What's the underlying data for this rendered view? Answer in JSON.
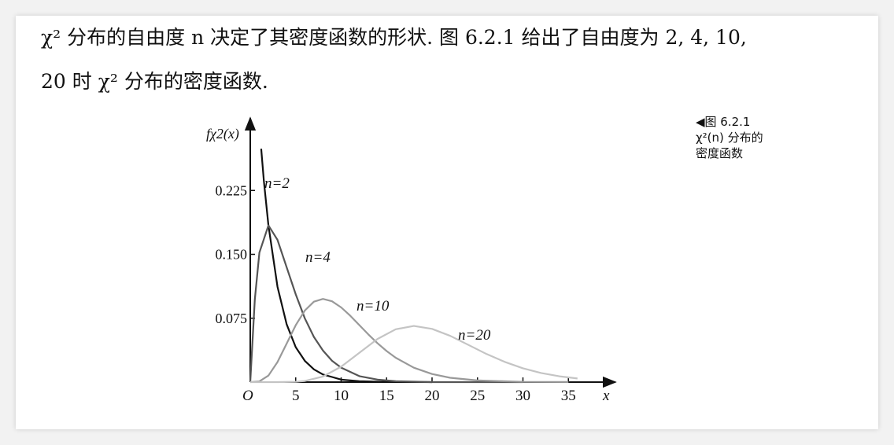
{
  "paragraph": [
    "χ² 分布的自由度 n 决定了其密度函数的形状. 图 6.2.1 给出了自由度为 2, 4, 10,",
    "20 时 χ² 分布的密度函数."
  ],
  "caption": [
    "◀图 6.2.1",
    "χ²(n) 分布的",
    "密度函数"
  ],
  "chart_data": {
    "type": "line",
    "y_label": "fχ2(x)",
    "x_label": "x",
    "origin_label": "O",
    "xlim": [
      0,
      40
    ],
    "ylim": [
      0,
      0.3
    ],
    "xticks": [
      5,
      10,
      15,
      20,
      25,
      30,
      35
    ],
    "yticks": [
      {
        "value": 0.075,
        "label": "0.075"
      },
      {
        "value": 0.15,
        "label": "0.150"
      },
      {
        "value": 0.225,
        "label": "0.225"
      }
    ],
    "series": [
      {
        "name": "n=2",
        "color": "#111111",
        "x": [
          1.2,
          1.5,
          2,
          3,
          4,
          5,
          6,
          7,
          8,
          9,
          10,
          12,
          14,
          16,
          20
        ],
        "values": [
          0.274,
          0.236,
          0.184,
          0.112,
          0.068,
          0.041,
          0.025,
          0.015,
          0.009,
          0.006,
          0.003,
          0.001,
          0.0005,
          0.0002,
          0
        ]
      },
      {
        "name": "n=4",
        "color": "#555555",
        "x": [
          0,
          0.5,
          1,
          2,
          3,
          4,
          5,
          6,
          7,
          8,
          9,
          10,
          12,
          14,
          16,
          20,
          25,
          30
        ],
        "values": [
          0,
          0.097,
          0.152,
          0.184,
          0.167,
          0.135,
          0.103,
          0.075,
          0.053,
          0.037,
          0.025,
          0.017,
          0.007,
          0.003,
          0.001,
          0,
          0,
          0
        ]
      },
      {
        "name": "n=10",
        "color": "#999999",
        "x": [
          0,
          1,
          2,
          3,
          4,
          5,
          6,
          7,
          8,
          9,
          10,
          11,
          12,
          13,
          14,
          15,
          16,
          18,
          20,
          22,
          25,
          30,
          35
        ],
        "values": [
          0,
          0.0008,
          0.0077,
          0.0235,
          0.0451,
          0.0668,
          0.084,
          0.0944,
          0.0977,
          0.0949,
          0.0877,
          0.0779,
          0.0669,
          0.0559,
          0.0456,
          0.0365,
          0.0286,
          0.0169,
          0.0095,
          0.0051,
          0.0019,
          0.0003,
          0.0001
        ]
      },
      {
        "name": "n=20",
        "color": "#c4c4c4",
        "x": [
          0,
          3,
          5,
          6,
          8,
          10,
          12,
          14,
          16,
          18,
          20,
          22,
          24,
          26,
          28,
          30,
          32,
          34,
          36
        ],
        "values": [
          0,
          0,
          0.0004,
          0.0013,
          0.0066,
          0.0181,
          0.0344,
          0.0507,
          0.062,
          0.0659,
          0.0625,
          0.0543,
          0.0437,
          0.033,
          0.0237,
          0.0162,
          0.0107,
          0.0068,
          0.0042
        ]
      }
    ]
  }
}
